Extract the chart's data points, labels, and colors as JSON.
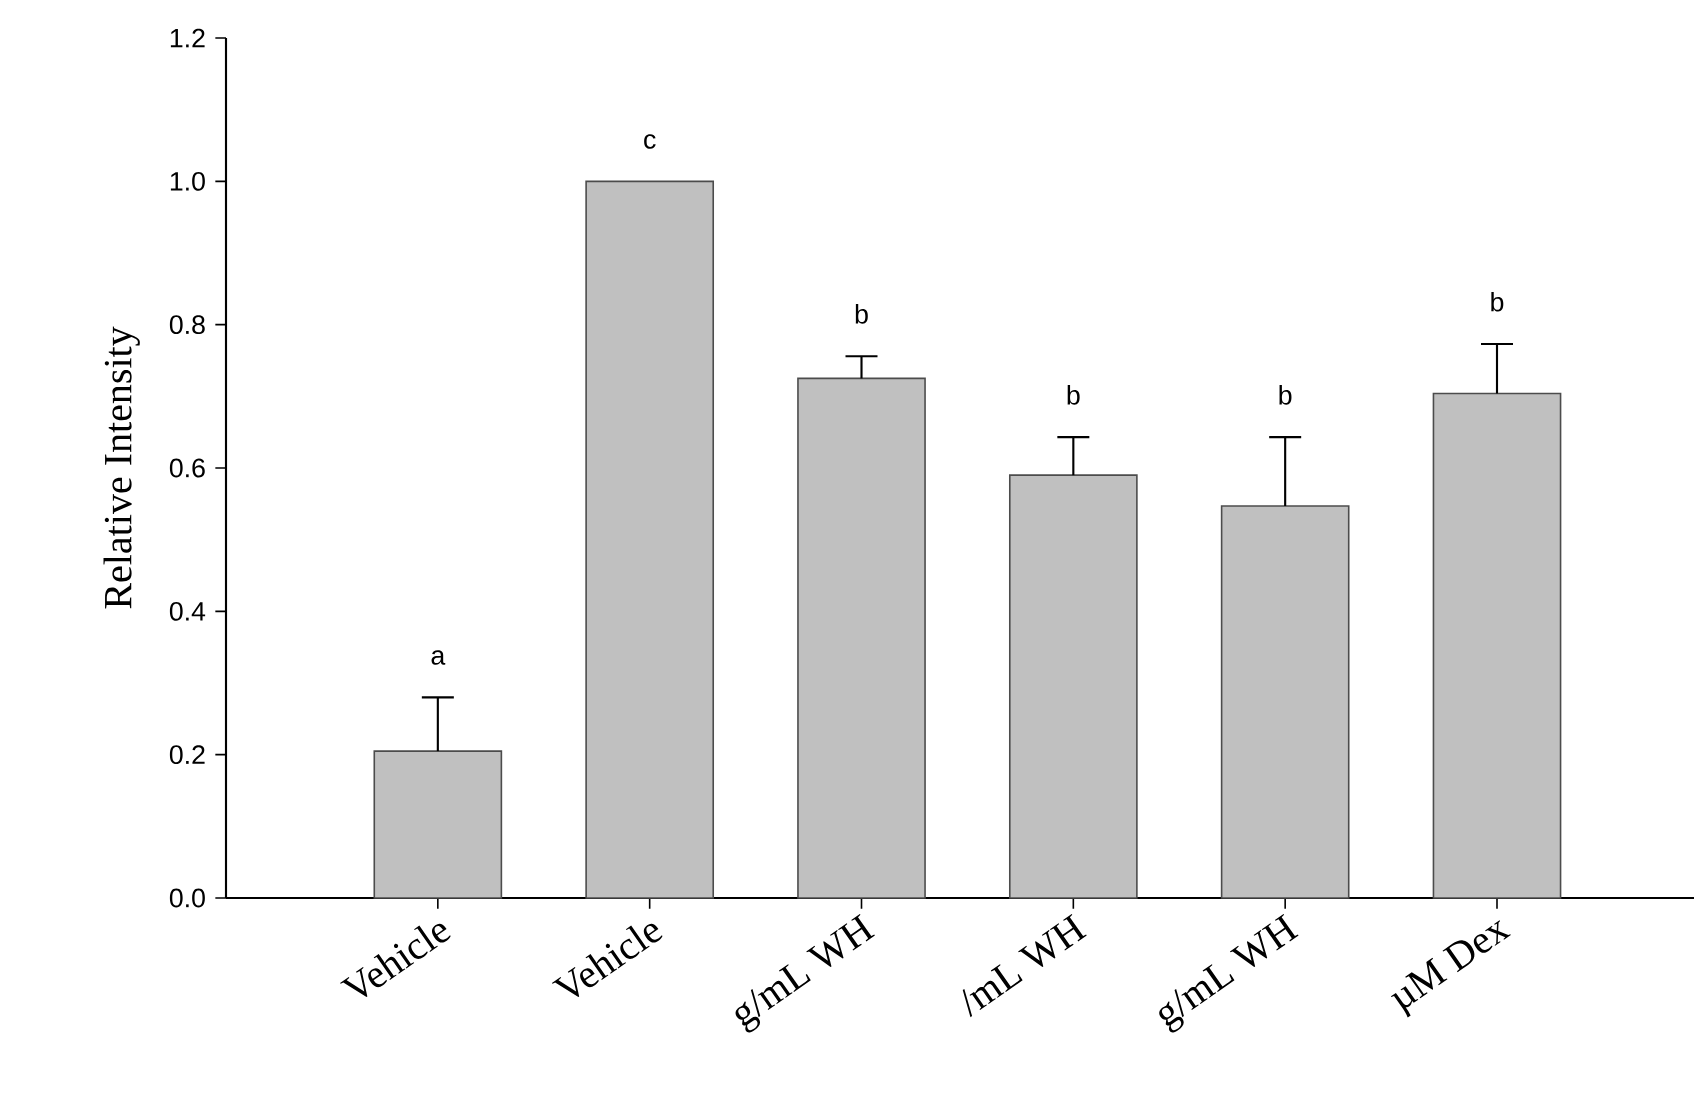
{
  "chart_data": {
    "type": "bar",
    "ylabel": "Relative Intensity",
    "categories": [
      "Vehicle",
      "Vehicle",
      "g/mL WH",
      "/mL WH",
      "g/mL WH",
      "µM Dex"
    ],
    "values": [
      0.205,
      1.0,
      0.725,
      0.59,
      0.547,
      0.704
    ],
    "errors": [
      [
        0.205,
        0.28
      ],
      null,
      [
        0.725,
        0.756
      ],
      [
        0.59,
        0.643
      ],
      [
        0.547,
        0.643
      ],
      [
        0.704,
        0.773
      ]
    ],
    "color": "#c0c0c0",
    "ylim": [
      0,
      1.2
    ],
    "yticks": [
      {
        "value": 0,
        "label": "0.0"
      },
      0.2,
      0.4,
      0.6,
      0.8,
      {
        "value": 1,
        "label": "1.0"
      },
      1.2
    ],
    "annotations": [
      "a",
      "c",
      "b",
      "b",
      "b",
      "b"
    ],
    "grid": false
  }
}
